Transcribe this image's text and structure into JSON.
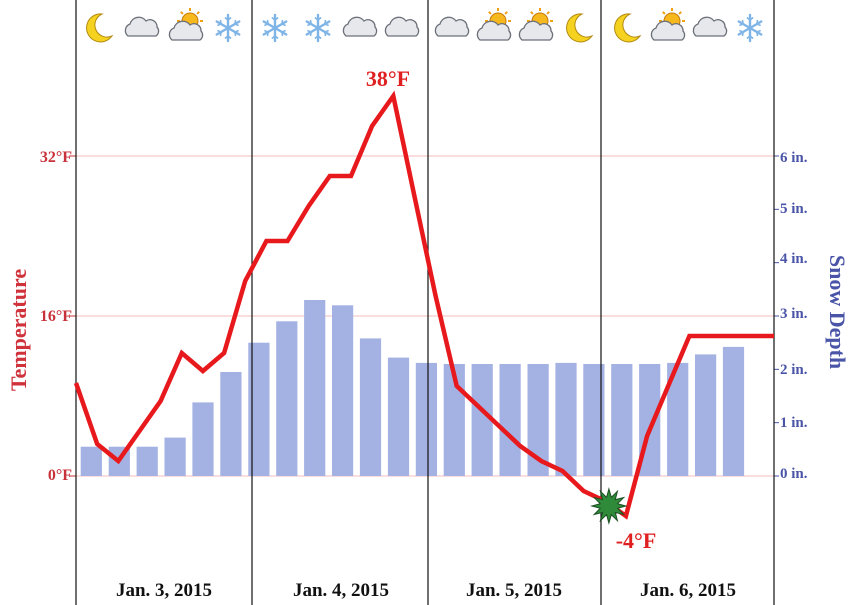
{
  "chart_data": {
    "type": "line+bar",
    "days": [
      "Jan. 3, 2015",
      "Jan. 4, 2015",
      "Jan. 5, 2015",
      "Jan. 6, 2015"
    ],
    "left_axis": {
      "label": "Temperature",
      "ticks": [
        0,
        16,
        32
      ],
      "tick_labels": [
        "0°F",
        "16°F",
        "32°F"
      ],
      "ylim": [
        -10,
        48
      ]
    },
    "right_axis": {
      "label": "Snow Depth",
      "ticks": [
        0,
        1,
        2,
        3,
        4,
        5,
        6
      ],
      "tick_labels": [
        "0 in.",
        "1 in.",
        "2 in.",
        "3 in.",
        "4 in.",
        "5 in.",
        "6 in."
      ]
    },
    "temperature_series": [
      9.3,
      3.2,
      1.5,
      4.5,
      7.5,
      12.3,
      10.5,
      12.3,
      19.5,
      23.5,
      23.5,
      27.0,
      30.0,
      30.0,
      35.0,
      38.0,
      28.0,
      18.0,
      9.0,
      7.0,
      5.0,
      3.0,
      1.5,
      0.5,
      -1.5,
      -2.5,
      -4.0,
      4.0,
      9.0,
      14.0,
      14.0,
      14.0,
      14.0,
      14.0
    ],
    "snow_depth_series": [
      0.55,
      0.55,
      0.55,
      0.72,
      1.38,
      1.95,
      2.5,
      2.9,
      3.3,
      3.2,
      2.58,
      2.22,
      2.12,
      2.1,
      2.1,
      2.1,
      2.1,
      2.12,
      2.1,
      2.1,
      2.1,
      2.12,
      2.28,
      2.42
    ],
    "annotations": [
      {
        "label": "38°F",
        "value": 38,
        "type": "max"
      },
      {
        "label": "-4°F",
        "value": -4,
        "type": "min"
      }
    ],
    "weather_icons": [
      "moon-icon",
      "cloud-icon",
      "partly-cloudy-icon",
      "snowflake-icon",
      "snowflake-icon",
      "snowflake-icon",
      "cloud-icon",
      "cloud-icon",
      "cloud-icon",
      "partly-cloudy-icon",
      "partly-cloudy-icon",
      "moon-icon",
      "moon-icon",
      "partly-cloudy-icon",
      "cloud-icon",
      "snowflake-icon"
    ],
    "colors": {
      "temperature": "#e8191c",
      "snow": "#a4b1e3",
      "left_axis": "#c8323a",
      "right_axis": "#4b55a8",
      "minimum_marker": "#2f8a3a"
    },
    "grid": true
  }
}
